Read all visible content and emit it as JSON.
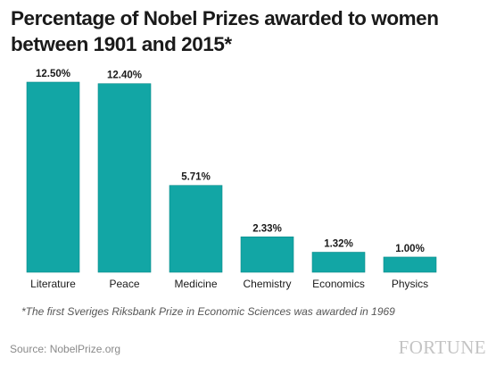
{
  "title_lines": [
    "Percentage of Nobel Prizes awarded to women",
    "between 1901 and 2015*"
  ],
  "footnote": "*The first Sveriges Riksbank Prize in Economic Sciences was awarded in 1969",
  "source": "Source: NobelPrize.org",
  "logo": "FORTUNE",
  "colors": {
    "bar": "#12a6a5",
    "bar_stroke": "#0d8c8b",
    "text": "#1a1a1a"
  },
  "chart_data": {
    "type": "bar",
    "title": "Percentage of Nobel Prizes awarded to women between 1901 and 2015*",
    "categories": [
      "Literature",
      "Peace",
      "Medicine",
      "Chemistry",
      "Economics",
      "Physics"
    ],
    "values": [
      12.5,
      12.4,
      5.71,
      2.33,
      1.32,
      1.0
    ],
    "data_labels": [
      "12.50%",
      "12.40%",
      "5.71%",
      "2.33%",
      "1.32%",
      "1.00%"
    ],
    "xlabel": "",
    "ylabel": "",
    "ylim": [
      0,
      12.5
    ],
    "grid": false,
    "legend": "none"
  }
}
